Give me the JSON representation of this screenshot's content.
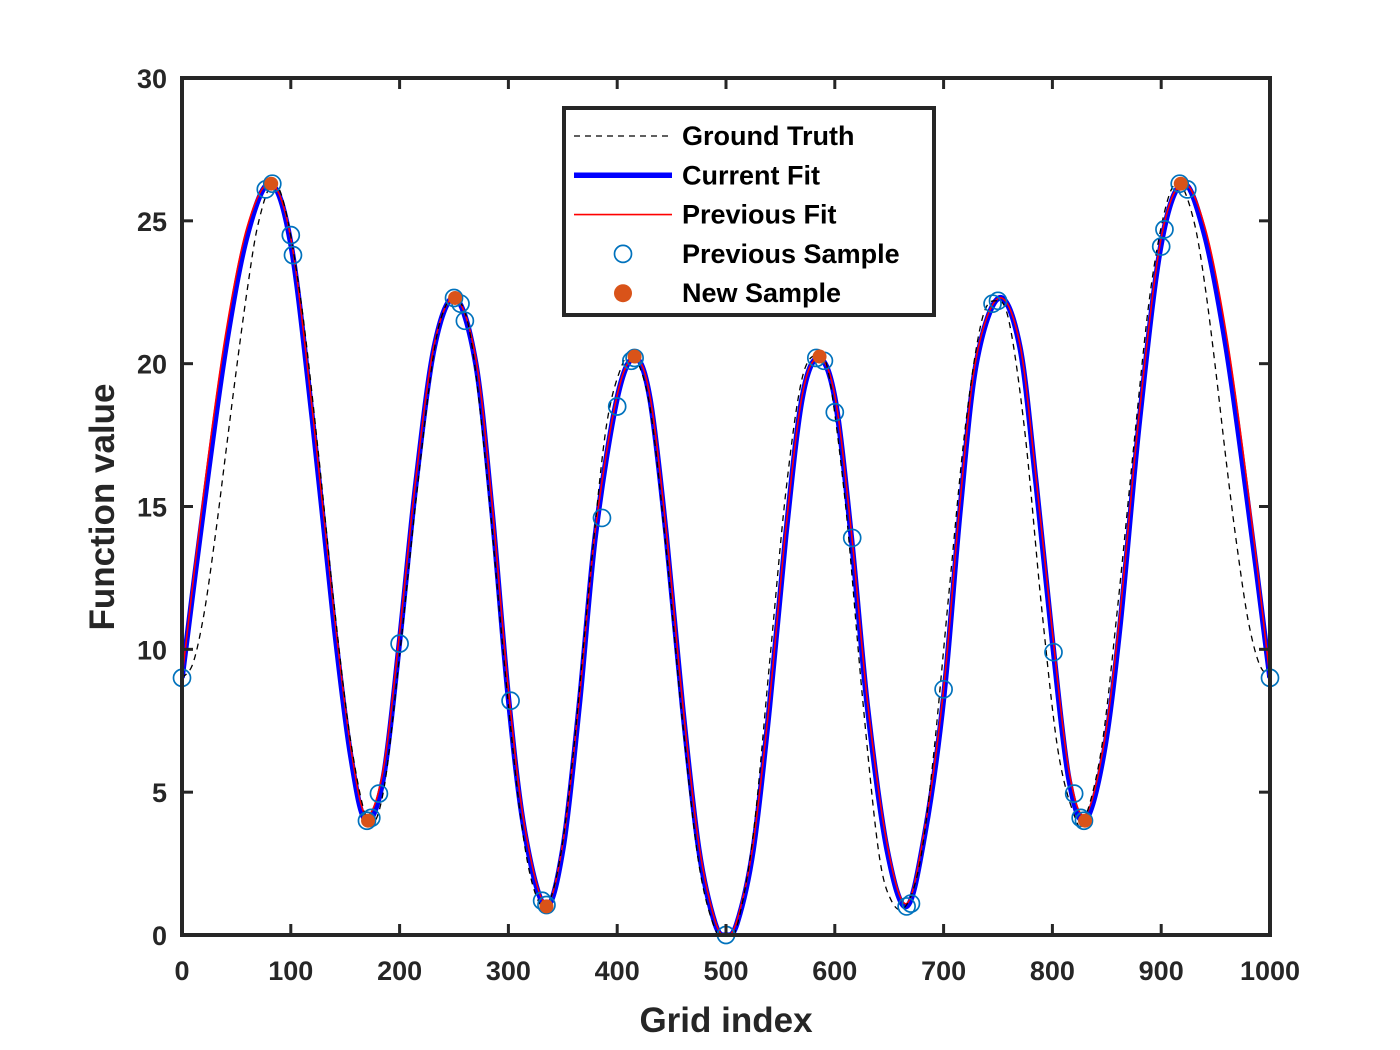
{
  "chart_data": {
    "type": "line",
    "xlabel": "Grid index",
    "ylabel": "Function value",
    "xlim": [
      0,
      1000
    ],
    "ylim": [
      0,
      30
    ],
    "xticks": [
      0,
      100,
      200,
      300,
      400,
      500,
      600,
      700,
      800,
      900,
      1000
    ],
    "yticks": [
      0,
      5,
      10,
      15,
      20,
      25,
      30
    ],
    "grid": false,
    "legend_position": "top-center",
    "series": [
      {
        "name": "Ground Truth",
        "style": "dashed-line",
        "color": "#000000",
        "x": [
          0,
          10,
          20,
          30,
          40,
          50,
          60,
          70,
          83,
          95,
          110,
          125,
          140,
          155,
          171,
          185,
          200,
          215,
          230,
          240,
          252,
          265,
          280,
          295,
          310,
          322,
          335,
          348,
          360,
          375,
          390,
          405,
          415,
          430,
          445,
          460,
          475,
          490,
          500,
          510,
          525,
          540,
          555,
          570,
          585,
          595,
          610,
          625,
          640,
          652,
          665,
          678,
          690,
          705,
          720,
          735,
          748,
          760,
          775,
          790,
          805,
          820,
          829,
          845,
          860,
          875,
          890,
          905,
          917,
          930,
          940,
          950,
          960,
          970,
          980,
          990,
          1000
        ],
        "values": [
          9.0,
          9.5,
          11.2,
          13.8,
          16.8,
          19.8,
          22.6,
          24.9,
          26.3,
          25.4,
          22.0,
          17.0,
          11.5,
          6.8,
          4.0,
          5.0,
          9.8,
          15.2,
          20.0,
          21.8,
          22.3,
          21.0,
          16.2,
          10.0,
          4.5,
          1.8,
          1.0,
          2.8,
          6.5,
          12.5,
          17.8,
          20.0,
          20.3,
          18.5,
          13.5,
          7.5,
          2.5,
          0.2,
          0.0,
          0.3,
          3.5,
          9.5,
          15.5,
          19.5,
          20.3,
          19.5,
          15.0,
          8.5,
          3.0,
          1.2,
          1.0,
          2.5,
          6.0,
          12.0,
          17.8,
          21.5,
          22.2,
          21.5,
          17.5,
          11.5,
          6.5,
          4.2,
          4.0,
          6.5,
          11.5,
          17.2,
          22.5,
          25.6,
          26.3,
          25.0,
          22.8,
          19.8,
          16.5,
          13.5,
          11.0,
          9.5,
          9.0
        ]
      },
      {
        "name": "Current Fit",
        "style": "solid-line",
        "color": "#0000ff",
        "x": [
          0,
          20,
          40,
          60,
          81,
          100,
          120,
          140,
          155,
          169,
          185,
          200,
          215,
          232,
          251,
          270,
          285,
          300,
          315,
          334,
          350,
          365,
          380,
          400,
          416,
          430,
          445,
          460,
          475,
          490,
          500,
          510,
          525,
          540,
          555,
          570,
          585,
          600,
          615,
          630,
          648,
          666,
          683,
          700,
          715,
          730,
          751,
          770,
          785,
          800,
          815,
          830,
          847,
          862,
          880,
          900,
          920,
          940,
          960,
          980,
          1000
        ],
        "values": [
          9.0,
          15.0,
          20.5,
          24.5,
          26.3,
          24.2,
          18.0,
          10.8,
          6.3,
          4.0,
          5.5,
          10.3,
          15.8,
          20.6,
          22.3,
          20.0,
          14.8,
          8.3,
          3.6,
          1.0,
          3.0,
          8.0,
          14.0,
          18.8,
          20.2,
          18.8,
          14.0,
          8.0,
          3.0,
          0.4,
          0.0,
          0.4,
          3.0,
          8.0,
          14.0,
          18.8,
          20.2,
          18.8,
          14.0,
          8.0,
          3.0,
          1.0,
          3.6,
          8.3,
          14.8,
          20.0,
          22.3,
          20.6,
          15.8,
          10.3,
          5.5,
          4.0,
          6.3,
          10.8,
          18.0,
          24.2,
          26.3,
          24.5,
          20.5,
          15.0,
          9.0
        ]
      },
      {
        "name": "Previous Fit",
        "style": "solid-line",
        "color": "#ff0000",
        "x": [
          0,
          20,
          40,
          60,
          81,
          100,
          120,
          140,
          155,
          169,
          185,
          200,
          215,
          232,
          251,
          270,
          285,
          300,
          315,
          334,
          350,
          365,
          380,
          400,
          416,
          430,
          445,
          460,
          475,
          490,
          500,
          510,
          525,
          540,
          555,
          570,
          585,
          600,
          615,
          630,
          648,
          666,
          683,
          700,
          715,
          730,
          751,
          770,
          785,
          800,
          815,
          830,
          847,
          862,
          880,
          900,
          920,
          940,
          960,
          980,
          1000
        ],
        "values": [
          9.0,
          15.5,
          21.0,
          24.8,
          26.3,
          24.4,
          18.3,
          11.2,
          6.6,
          4.2,
          5.8,
          10.6,
          16.0,
          20.7,
          22.3,
          20.2,
          15.1,
          8.6,
          3.8,
          1.1,
          3.2,
          8.2,
          14.2,
          18.9,
          20.2,
          18.9,
          14.2,
          8.2,
          3.2,
          0.5,
          0.0,
          0.5,
          3.2,
          8.2,
          14.2,
          18.9,
          20.2,
          18.9,
          14.2,
          8.2,
          3.2,
          1.1,
          3.8,
          8.6,
          15.1,
          20.2,
          22.3,
          20.7,
          16.0,
          10.6,
          5.8,
          4.2,
          6.6,
          11.2,
          18.3,
          24.4,
          26.3,
          24.8,
          21.0,
          15.5,
          9.0
        ]
      },
      {
        "name": "Previous Sample",
        "style": "open-circle",
        "color": "#0072bd",
        "x": [
          0,
          77,
          83,
          100,
          102,
          170,
          174,
          181,
          200,
          250,
          256,
          260,
          302,
          331,
          335,
          386,
          400,
          413,
          416,
          500,
          583,
          590,
          600,
          616,
          666,
          670,
          700,
          745,
          750,
          801,
          820,
          826,
          829,
          900,
          903,
          917,
          924,
          1000
        ],
        "values": [
          9.0,
          26.1,
          26.3,
          24.5,
          23.8,
          4.0,
          4.1,
          4.95,
          10.2,
          22.3,
          22.1,
          21.5,
          8.2,
          1.2,
          1.05,
          14.6,
          18.5,
          20.1,
          20.2,
          0.0,
          20.2,
          20.1,
          18.3,
          13.9,
          1.0,
          1.1,
          8.6,
          22.1,
          22.2,
          9.9,
          4.95,
          4.1,
          4.0,
          24.1,
          24.7,
          26.3,
          26.1,
          9.0
        ]
      },
      {
        "name": "New Sample",
        "style": "filled-circle",
        "color": "#d95319",
        "x": [
          82,
          171,
          251,
          335,
          416,
          586,
          830,
          918
        ],
        "values": [
          26.3,
          4.0,
          22.3,
          1.0,
          20.25,
          20.25,
          4.0,
          26.3
        ]
      }
    ]
  }
}
